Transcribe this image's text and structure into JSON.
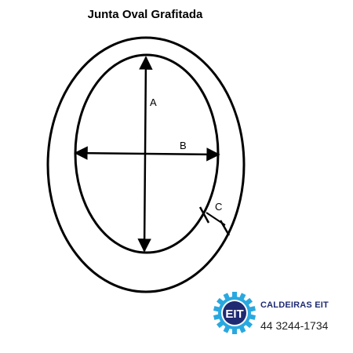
{
  "title": "Junta Oval Grafitada",
  "dimensions": {
    "a_label": "A",
    "b_label": "B",
    "c_label": "C"
  },
  "brand": {
    "logo_text": "EIT",
    "name": "CALDEIRAS EIT",
    "phone": "44 3244-1734",
    "colors": {
      "primary": "#1e2a72",
      "accent": "#29a8e0"
    }
  }
}
